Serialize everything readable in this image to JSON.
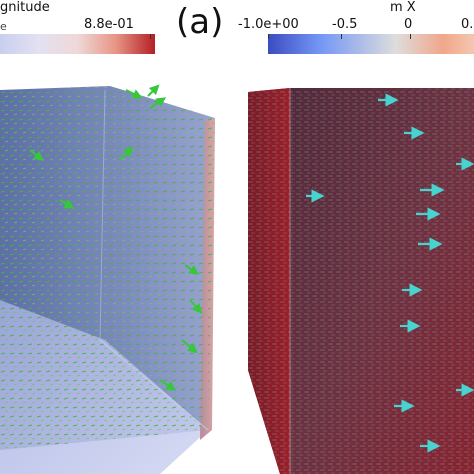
{
  "left_panel": {
    "colorbar_title": "gnitude",
    "tick_min": "e",
    "tick_max": "8.8e-01",
    "colors": {
      "low": "#c8cfee",
      "mid": "#efd8d8",
      "high": "#b41f25",
      "arrows": "#3cc43a"
    }
  },
  "panel_label": "(a)",
  "right_panel": {
    "colorbar_title": "m X",
    "ticks": [
      "-1.0e+00",
      "-0.5",
      "0",
      "0."
    ],
    "colors": {
      "low": "#3b4cc0",
      "mid": "#dddddd",
      "high": "#f4c6b0",
      "cube": "#a01c28",
      "arrows": "#49d3d0"
    }
  }
}
